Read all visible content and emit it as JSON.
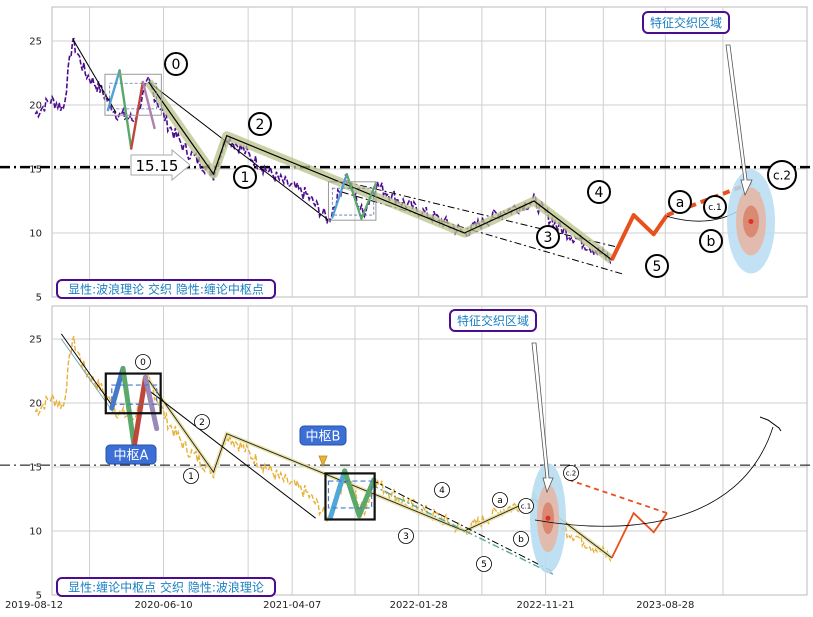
{
  "chart_data": [
    {
      "type": "line",
      "panel": "top",
      "ylim": [
        5,
        27
      ],
      "y_ticks": [
        5,
        10,
        15,
        20,
        25
      ],
      "grid": true,
      "reference_line": {
        "y": 15.15,
        "label": "15.15",
        "style": "dash-dot"
      },
      "series_price_label": "",
      "wave_points": [
        {
          "label": "0",
          "date": "2020-05-06",
          "value": 21.8
        },
        {
          "label": "1",
          "date": "2020-10-05",
          "value": 14.6
        },
        {
          "label": "2",
          "date": "2020-11-05",
          "value": 17.6
        },
        {
          "label": "3",
          "date": "2022-05-15",
          "value": 10.0
        },
        {
          "label": "4",
          "date": "2022-10-25",
          "value": 12.5
        },
        {
          "label": "5",
          "date": "2023-04-25",
          "value": 7.9
        },
        {
          "label": "a",
          "date": "2023-06-15",
          "value": 11.4
        },
        {
          "label": "b",
          "date": "2023-08-01",
          "value": 9.9
        },
        {
          "label": "c.1",
          "date": "2023-09-01",
          "value": 11.4
        },
        {
          "label": "c.2",
          "date": "2024-04-20",
          "value": 14.3
        }
      ],
      "annotations": {
        "region_label": "特征交织区域",
        "legend_note": "显性:波浪理论 交织 隐性:缠论中枢点"
      }
    },
    {
      "type": "line",
      "panel": "bottom",
      "ylim": [
        5,
        28
      ],
      "y_ticks": [
        5,
        10,
        15,
        20,
        25
      ],
      "grid": true,
      "reference_line": {
        "y": 15.15,
        "style": "dash-dot"
      },
      "x_tick_labels": [
        "2019-08-12",
        "2020-06-10",
        "2021-04-07",
        "2022-01-28",
        "2022-11-21",
        "2023-08-28"
      ],
      "zhongshu": [
        {
          "label": "中枢A",
          "date_start": "2020-02-10",
          "date_end": "2020-05-25",
          "low": 19.2,
          "high": 22.3
        },
        {
          "label": "中枢B",
          "date_start": "2021-07-01",
          "date_end": "2021-10-10",
          "low": 10.9,
          "high": 14.5
        }
      ],
      "wave_points": [
        {
          "label": "0",
          "date": "2020-05-06",
          "value": 21.8
        },
        {
          "label": "1",
          "date": "2020-10-05",
          "value": 14.6
        },
        {
          "label": "2",
          "date": "2020-11-05",
          "value": 17.6
        },
        {
          "label": "3",
          "date": "2022-05-15",
          "value": 10.0
        },
        {
          "label": "4",
          "date": "2022-10-25",
          "value": 12.5
        },
        {
          "label": "5",
          "date": "2023-04-25",
          "value": 7.9
        },
        {
          "label": "a",
          "date": "2023-06-15",
          "value": 11.4
        },
        {
          "label": "b",
          "date": "2023-08-01",
          "value": 9.9
        },
        {
          "label": "c.1",
          "date": "2023-09-01",
          "value": 11.4
        },
        {
          "label": "c.2",
          "date": "2024-04-20",
          "value": 14.3
        }
      ],
      "annotations": {
        "region_label": "特征交织区域",
        "legend_note": "显性:缠论中枢点 交织 隐性:波浪理论"
      }
    }
  ]
}
